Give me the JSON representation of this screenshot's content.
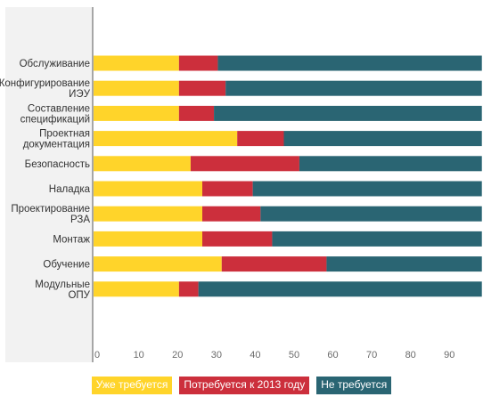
{
  "chart_data": {
    "type": "bar",
    "orientation": "horizontal",
    "stacked": true,
    "categories": [
      [
        "Обслуживание"
      ],
      [
        "Конфигурирование",
        "ИЭУ"
      ],
      [
        "Составление",
        "спецификаций"
      ],
      [
        "Проектная",
        "документация"
      ],
      [
        "Безопасность"
      ],
      [
        "Наладка"
      ],
      [
        "Проектирование",
        "РЗА"
      ],
      [
        "Монтаж"
      ],
      [
        "Обучение"
      ],
      [
        "Модульные",
        "ОПУ"
      ]
    ],
    "series": [
      {
        "name": "Уже требуется",
        "color": "#FFD42A",
        "values": [
          22,
          22,
          22,
          37,
          25,
          28,
          28,
          28,
          33,
          22
        ]
      },
      {
        "name": "Потребуется к 2013 году",
        "color": "#CC2F3C",
        "values": [
          10,
          12,
          9,
          12,
          28,
          13,
          15,
          18,
          27,
          5
        ]
      },
      {
        "name": "Не требуется",
        "color": "#2A6573",
        "values": [
          68,
          66,
          69,
          51,
          47,
          59,
          57,
          54,
          40,
          73
        ]
      }
    ],
    "xticks": [
      0,
      10,
      20,
      30,
      40,
      50,
      60,
      70,
      80,
      90
    ],
    "xlim": [
      0,
      98
    ],
    "grid": false,
    "legend_position": "bottom"
  }
}
